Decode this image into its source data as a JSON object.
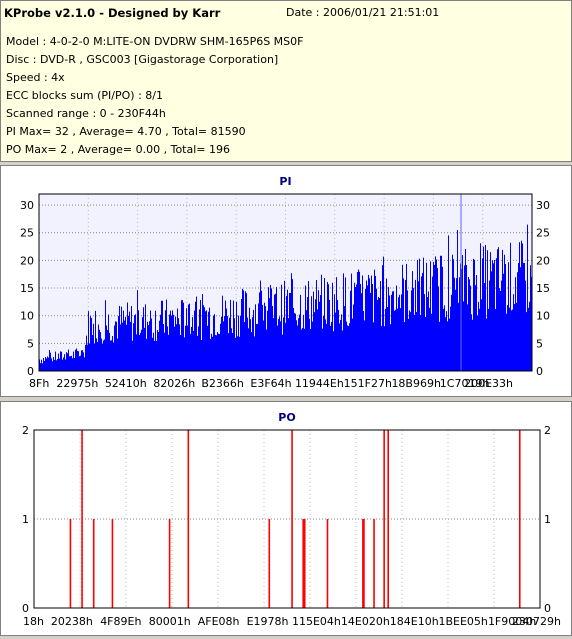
{
  "header": {
    "title": "KProbe v2.1.0 - Designed by Karr",
    "date": "Date : 2006/01/21 21:51:01",
    "model": "Model : 4-0-2-0 M:LITE-ON DVDRW SHM-165P6S MS0F",
    "disc": "Disc : DVD-R , GSC003 [Gigastorage Corporation]",
    "speed": "Speed : 4x",
    "ecc": "ECC blocks sum (PI/PO) : 8/1",
    "range": "Scanned range : 0 - 230F44h",
    "pi_stats": "PI Max= 32 , Average= 4.70 , Total= 81590",
    "po_stats": "PO Max= 2 , Average= 0.00 , Total= 196"
  },
  "chart_data": [
    {
      "type": "bar",
      "title": "PI",
      "ylim": [
        0,
        32
      ],
      "yticks": [
        0,
        5,
        10,
        15,
        20,
        25,
        30
      ],
      "xtick_labels": [
        "8Fh",
        "22975h",
        "52410h",
        "82026h",
        "B2366h",
        "E3F64h",
        "11944Eh",
        "151F27h",
        "18B969h",
        "1C7019h",
        "200E33h"
      ],
      "grid": true,
      "color": "#0000ff",
      "max": 32,
      "average": 4.7,
      "series_trend": [
        {
          "x": 0.0,
          "y": 2
        },
        {
          "x": 0.09,
          "y": 3
        },
        {
          "x": 0.1,
          "y": 8
        },
        {
          "x": 0.3,
          "y": 9
        },
        {
          "x": 0.5,
          "y": 11
        },
        {
          "x": 0.7,
          "y": 13
        },
        {
          "x": 0.85,
          "y": 15
        },
        {
          "x": 1.0,
          "y": 16
        }
      ]
    },
    {
      "type": "bar",
      "title": "PO",
      "ylim": [
        0,
        2
      ],
      "yticks": [
        0,
        1,
        2
      ],
      "xtick_labels": [
        "18h",
        "20238h",
        "4F89Eh",
        "80001h",
        "AFE08h",
        "E1978h",
        "115E04h",
        "14E020h",
        "184E10h",
        "1BEE05h",
        "1F9004h",
        "230729h"
      ],
      "grid": true,
      "color": "#ff0000",
      "max": 2,
      "spikes": [
        {
          "x": 0.072,
          "y": 1
        },
        {
          "x": 0.095,
          "y": 2
        },
        {
          "x": 0.118,
          "y": 1
        },
        {
          "x": 0.155,
          "y": 1
        },
        {
          "x": 0.268,
          "y": 1
        },
        {
          "x": 0.305,
          "y": 2
        },
        {
          "x": 0.465,
          "y": 1
        },
        {
          "x": 0.51,
          "y": 2
        },
        {
          "x": 0.532,
          "y": 1
        },
        {
          "x": 0.535,
          "y": 1
        },
        {
          "x": 0.58,
          "y": 1
        },
        {
          "x": 0.65,
          "y": 1
        },
        {
          "x": 0.652,
          "y": 1
        },
        {
          "x": 0.672,
          "y": 1
        },
        {
          "x": 0.692,
          "y": 2
        },
        {
          "x": 0.7,
          "y": 2
        },
        {
          "x": 0.96,
          "y": 2
        }
      ]
    }
  ]
}
